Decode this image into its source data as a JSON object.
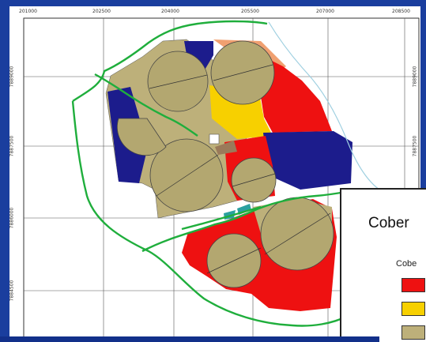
{
  "map": {
    "x_ticks_top": [
      "201000",
      "202500",
      "204000",
      "205500",
      "207000",
      "208500"
    ],
    "y_ticks_left": [
      "7889000",
      "7887500",
      "7886000",
      "7884500"
    ],
    "y_ticks_right": [
      "7889000",
      "7887500"
    ],
    "colors": {
      "background": "#1a3e9e",
      "frame": "#ffffff",
      "boundary": "#1fae3c",
      "red": "#ee1111",
      "yellow": "#f7d000",
      "navy": "#1c1c8c",
      "khaki": "#bdb07a",
      "pivot": "#b3a770",
      "salmon": "#f0a070",
      "river": "#9ecfe0"
    }
  },
  "legend": {
    "title": "Cober",
    "subtitle": "Cobe",
    "swatches": [
      {
        "icon": "red-swatch",
        "color": "#ee1111"
      },
      {
        "icon": "yellow-swatch",
        "color": "#f7d000"
      },
      {
        "icon": "khaki-swatch",
        "color": "#bdb07a"
      }
    ]
  }
}
